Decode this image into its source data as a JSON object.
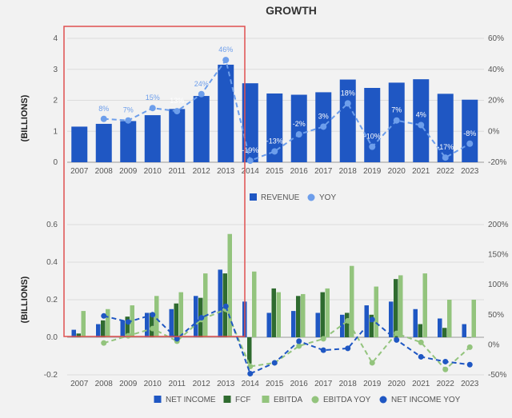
{
  "chart_data": [
    {
      "type": "bar",
      "title": "GROWTH",
      "ylabel": "(BILLIONS)",
      "ylim": [
        0,
        4
      ],
      "y2lim": [
        -20,
        60
      ],
      "y_ticks": [
        "0",
        "1",
        "2",
        "3",
        "4"
      ],
      "y2_ticks": [
        "-20%",
        "0%",
        "20%",
        "40%",
        "60%"
      ],
      "categories": [
        "2007",
        "2008",
        "2009",
        "2010",
        "2011",
        "2012",
        "2013",
        "2014",
        "2015",
        "2016",
        "2017",
        "2018",
        "2019",
        "2020",
        "2021",
        "2022",
        "2023"
      ],
      "series": [
        {
          "name": "REVENUE",
          "kind": "bar",
          "axis": "left",
          "color": "#1f57c3",
          "values": [
            1.15,
            1.24,
            1.33,
            1.52,
            1.72,
            2.14,
            3.15,
            2.55,
            2.22,
            2.18,
            2.26,
            2.67,
            2.4,
            2.57,
            2.68,
            2.21,
            2.02
          ]
        },
        {
          "name": "YOY",
          "kind": "line",
          "axis": "right",
          "color": "#6d9eeb",
          "values": [
            null,
            8,
            7,
            15,
            13,
            24,
            46,
            -19,
            -13,
            -2,
            3,
            18,
            -10,
            7,
            4,
            -17,
            -8
          ],
          "labels": [
            "",
            "8%",
            "7%",
            "15%",
            "13%",
            "24%",
            "46%",
            "-19%",
            "-13%",
            "-2%",
            "3%",
            "18%",
            "-10%",
            "7%",
            "4%",
            "-17%",
            "-8%"
          ]
        }
      ],
      "legend": "bottom-center",
      "grid": true
    },
    {
      "type": "bar",
      "ylabel": "(BILLIONS)",
      "ylim": [
        -0.2,
        0.6
      ],
      "y2lim": [
        -50,
        200
      ],
      "y_ticks": [
        "-0.2",
        "0.0",
        "0.2",
        "0.4",
        "0.6"
      ],
      "y2_ticks": [
        "-50%",
        "0%",
        "50%",
        "100%",
        "150%",
        "200%"
      ],
      "categories": [
        "2007",
        "2008",
        "2009",
        "2010",
        "2011",
        "2012",
        "2013",
        "2014",
        "2015",
        "2016",
        "2017",
        "2018",
        "2019",
        "2020",
        "2021",
        "2022",
        "2023"
      ],
      "series": [
        {
          "name": "NET INCOME",
          "kind": "bar",
          "axis": "left",
          "color": "#1f57c3",
          "values": [
            0.04,
            0.07,
            0.09,
            0.13,
            0.15,
            0.22,
            0.36,
            0.19,
            0.13,
            0.14,
            0.13,
            0.12,
            0.17,
            0.19,
            0.15,
            0.1,
            0.07
          ]
        },
        {
          "name": "FCF",
          "kind": "bar",
          "axis": "left",
          "color": "#2f6b2f",
          "values": [
            0.02,
            0.09,
            0.11,
            0.13,
            0.18,
            0.21,
            0.34,
            -0.14,
            0.26,
            0.22,
            0.24,
            0.13,
            0.12,
            0.31,
            0.07,
            0.05,
            0.0
          ]
        },
        {
          "name": "EBITDA",
          "kind": "bar",
          "axis": "left",
          "color": "#93c47d",
          "values": [
            0.14,
            0.15,
            0.17,
            0.22,
            0.24,
            0.34,
            0.55,
            0.35,
            0.24,
            0.23,
            0.26,
            0.38,
            0.27,
            0.33,
            0.34,
            0.2,
            0.2
          ]
        },
        {
          "name": "EBITDA YOY",
          "kind": "line",
          "axis": "right",
          "color": "#93c47d",
          "values": [
            null,
            3,
            15,
            27,
            6,
            42,
            59,
            -36,
            -30,
            -2,
            10,
            40,
            -30,
            19,
            4,
            -41,
            -4
          ]
        },
        {
          "name": "NET INCOME YOY",
          "kind": "line",
          "axis": "right",
          "color": "#1f57c3",
          "values": [
            null,
            48,
            38,
            50,
            10,
            45,
            64,
            -48,
            -30,
            6,
            -9,
            -6,
            42,
            8,
            -20,
            -28,
            -33
          ]
        }
      ],
      "legend": "bottom-center",
      "grid": true
    }
  ]
}
